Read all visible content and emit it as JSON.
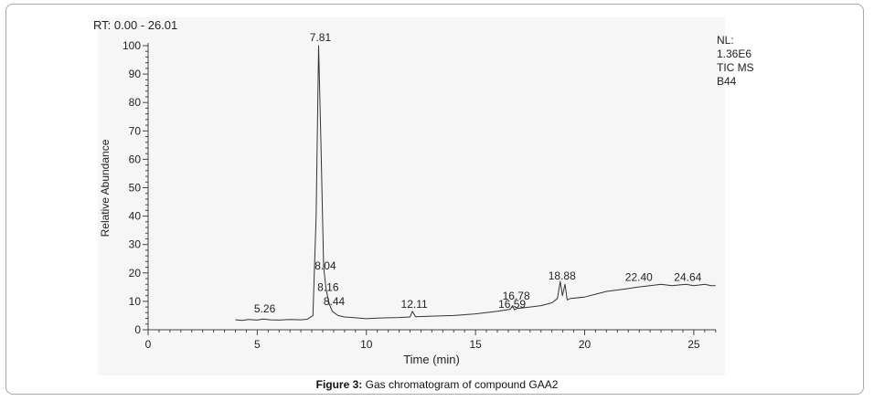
{
  "figure_caption": {
    "label": "Figure 3:",
    "text": " Gas chromatogram of compound GAA2"
  },
  "info_box": {
    "lines": [
      "NL:",
      "1.36E6",
      "TIC  MS",
      "B44"
    ]
  },
  "chart_data": {
    "type": "line",
    "title": "RT: 0.00 - 26.01",
    "xlabel": "Time (min)",
    "ylabel": "Relative Abundance",
    "xlim": [
      0,
      26.01
    ],
    "ylim": [
      0,
      100
    ],
    "x_ticks": [
      0,
      5,
      10,
      15,
      20,
      25
    ],
    "y_ticks": [
      0,
      10,
      20,
      30,
      40,
      50,
      60,
      70,
      80,
      90,
      100
    ],
    "grid": false,
    "series": [
      {
        "x": [
          4.0,
          4.3,
          4.6,
          5.0,
          5.26,
          5.6,
          6.0,
          6.5,
          7.0,
          7.3,
          7.55,
          7.7,
          7.81,
          7.92,
          8.04,
          8.16,
          8.3,
          8.44,
          8.7,
          9.0,
          9.5,
          10.0,
          10.5,
          11.0,
          11.5,
          12.0,
          12.11,
          12.25,
          13.0,
          14.0,
          15.0,
          16.0,
          16.59,
          16.7,
          16.78,
          16.9,
          17.5,
          18.0,
          18.5,
          18.75,
          18.88,
          18.98,
          19.1,
          19.2,
          19.35,
          20.0,
          20.5,
          21.0,
          21.5,
          22.0,
          22.4,
          23.0,
          23.5,
          24.0,
          24.64,
          25.0,
          25.5,
          25.8,
          26.0
        ],
        "y": [
          3.5,
          3.3,
          3.6,
          3.4,
          3.8,
          3.5,
          3.4,
          3.6,
          3.5,
          3.7,
          5,
          40,
          100,
          65,
          22,
          14,
          9,
          6.5,
          5,
          4.5,
          4.2,
          3.9,
          4.1,
          4.2,
          4.3,
          4.5,
          6.5,
          4.6,
          4.8,
          5.0,
          5.6,
          6.5,
          7.2,
          8.5,
          7.0,
          7.5,
          8.0,
          8.5,
          9.5,
          11,
          17,
          12,
          16,
          10.5,
          11,
          11.5,
          12.5,
          13.5,
          14,
          14.5,
          15,
          15.5,
          16,
          15.5,
          16,
          15.5,
          16,
          15.5,
          15.5
        ]
      }
    ],
    "peak_labels": [
      {
        "x": 5.26,
        "y": 5.5,
        "label": "5.26"
      },
      {
        "x": 7.81,
        "y": 101,
        "label": "7.81"
      },
      {
        "x": 8.04,
        "y": 20.5,
        "label": "8.04"
      },
      {
        "x": 8.16,
        "y": 13,
        "label": "8.16"
      },
      {
        "x": 8.44,
        "y": 8,
        "label": "8.44"
      },
      {
        "x": 12.11,
        "y": 7,
        "label": "12.11"
      },
      {
        "x": 16.59,
        "y": 7,
        "label": "16.59"
      },
      {
        "x": 16.78,
        "y": 10,
        "label": "16.78"
      },
      {
        "x": 18.88,
        "y": 17,
        "label": "18.88"
      },
      {
        "x": 22.4,
        "y": 16.5,
        "label": "22.40"
      },
      {
        "x": 24.64,
        "y": 16.5,
        "label": "24.64"
      }
    ]
  }
}
